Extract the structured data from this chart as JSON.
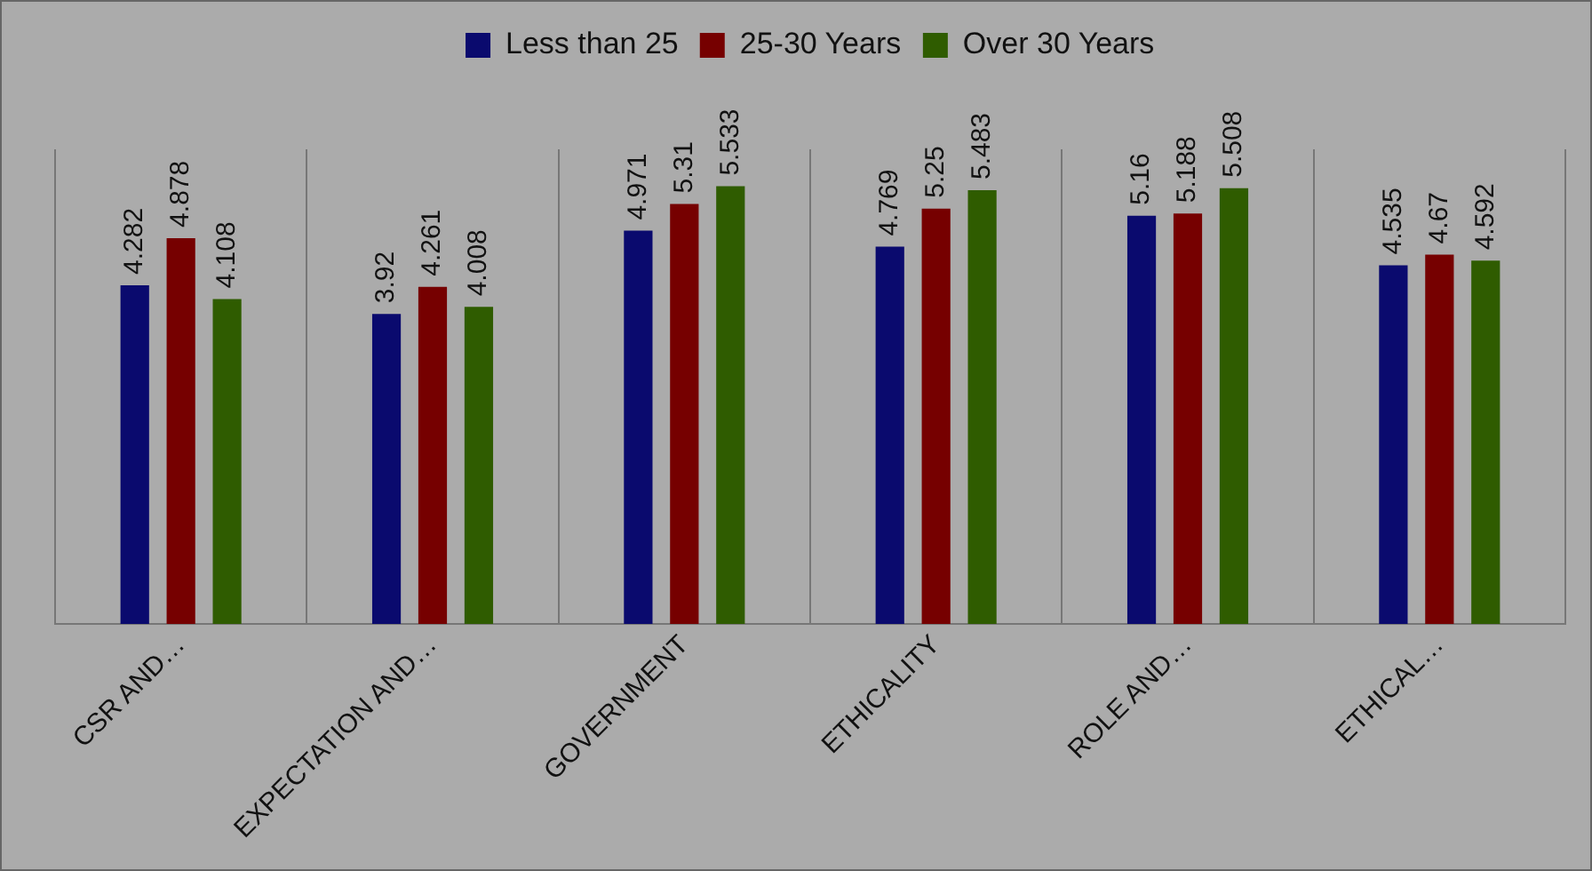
{
  "chart_data": {
    "type": "bar",
    "categories": [
      "CSR AND…",
      "EXPECTATION AND…",
      "GOVERNMENT",
      "ETHICALITY",
      "ROLE AND…",
      "ETHICAL…"
    ],
    "series": [
      {
        "name": "Less than 25",
        "color": "#0a0a6e",
        "values": [
          4.282,
          3.92,
          4.971,
          4.769,
          5.16,
          4.535
        ]
      },
      {
        "name": "25-30 Years",
        "color": "#760000",
        "values": [
          4.878,
          4.261,
          5.31,
          5.25,
          5.188,
          4.67
        ]
      },
      {
        "name": "Over 30 Years",
        "color": "#2f5c00",
        "values": [
          4.108,
          4.008,
          5.533,
          5.483,
          5.508,
          4.592
        ]
      }
    ],
    "data_labels": true,
    "legend": "top",
    "grid": "x"
  }
}
